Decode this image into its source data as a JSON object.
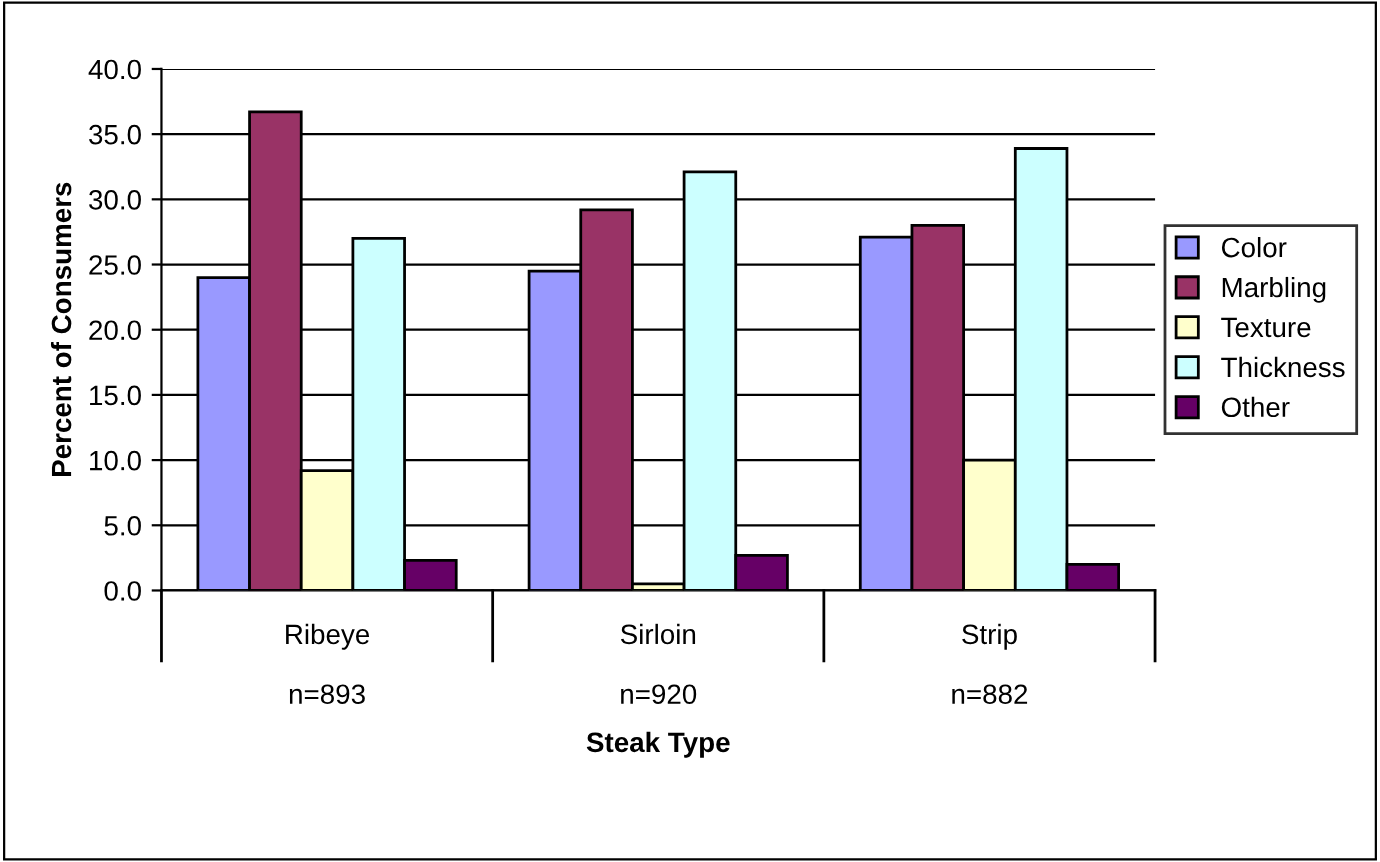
{
  "chart_data": {
    "type": "bar",
    "xlabel": "Steak Type",
    "ylabel": "Percent of Consumers",
    "categories": [
      "Ribeye\n\nn=893",
      "Sirloin\n\nn=920",
      "Strip\n\nn=882"
    ],
    "series": [
      {
        "name": "Color",
        "color": "#9999ff",
        "values": [
          24.0,
          24.5,
          27.1
        ]
      },
      {
        "name": "Marbling",
        "color": "#993366",
        "values": [
          36.7,
          29.2,
          28.0
        ]
      },
      {
        "name": "Texture",
        "color": "#ffffcc",
        "values": [
          9.2,
          0.5,
          10.0
        ]
      },
      {
        "name": "Thickness",
        "color": "#ccffff",
        "values": [
          27.0,
          32.1,
          33.9
        ]
      },
      {
        "name": "Other",
        "color": "#660066",
        "values": [
          2.3,
          2.7,
          2.0
        ]
      }
    ],
    "ylim": [
      0,
      40
    ],
    "yticks": [
      {
        "value": 0,
        "label": "0.0"
      },
      {
        "value": 5,
        "label": "5.0"
      },
      {
        "value": 10,
        "label": "10.0"
      },
      {
        "value": 15,
        "label": "15.0"
      },
      {
        "value": 20,
        "label": "20.0"
      },
      {
        "value": 25,
        "label": "25.0"
      },
      {
        "value": 30,
        "label": "30.0"
      },
      {
        "value": 35,
        "label": "35.0"
      },
      {
        "value": 40,
        "label": "40.0"
      }
    ],
    "grid": "y",
    "legend": "right"
  }
}
